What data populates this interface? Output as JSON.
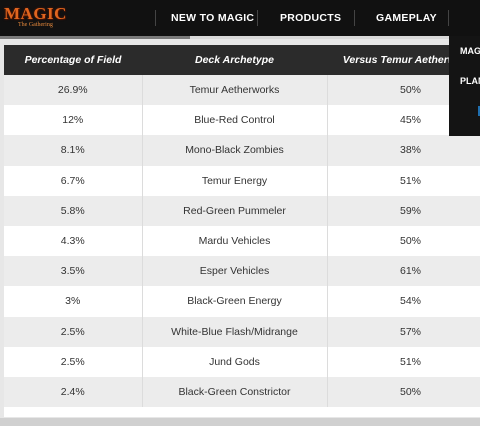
{
  "logo": {
    "main": "MAGIC",
    "sub": "The Gathering"
  },
  "nav": {
    "items": [
      {
        "label": "NEW TO MAGIC"
      },
      {
        "label": "PRODUCTS"
      },
      {
        "label": "GAMEPLAY"
      }
    ]
  },
  "dropdown": {
    "items": [
      "MAG",
      "PLAN"
    ]
  },
  "table": {
    "headers": [
      "Percentage of Field",
      "Deck Archetype",
      "Versus Temur Aetherworks"
    ],
    "rows": [
      [
        "26.9%",
        "Temur Aetherworks",
        "50%"
      ],
      [
        "12%",
        "Blue-Red Control",
        "45%"
      ],
      [
        "8.1%",
        "Mono-Black Zombies",
        "38%"
      ],
      [
        "6.7%",
        "Temur Energy",
        "51%"
      ],
      [
        "5.8%",
        "Red-Green Pummeler",
        "59%"
      ],
      [
        "4.3%",
        "Mardu Vehicles",
        "50%"
      ],
      [
        "3.5%",
        "Esper Vehicles",
        "61%"
      ],
      [
        "3%",
        "Black-Green Energy",
        "54%"
      ],
      [
        "2.5%",
        "White-Blue Flash/Midrange",
        "57%"
      ],
      [
        "2.5%",
        "Jund Gods",
        "51%"
      ],
      [
        "2.4%",
        "Black-Green Constrictor",
        "50%"
      ]
    ]
  }
}
